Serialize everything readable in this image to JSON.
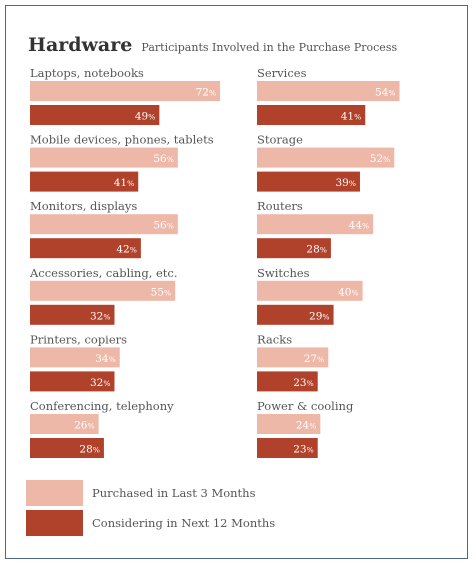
{
  "chart_data": {
    "type": "bar",
    "title": "Hardware",
    "subtitle": "Participants Involved in the Purchase Process",
    "unit": "%",
    "series": [
      {
        "name": "Purchased in Last 3 Months",
        "color": "#eeb8a8"
      },
      {
        "name": "Considering in Next 12 Months",
        "color": "#b0412a"
      }
    ],
    "panels": [
      {
        "categories": [
          {
            "label": "Laptops, notebooks",
            "values": [
              72,
              49
            ]
          },
          {
            "label": "Mobile devices, phones, tablets",
            "values": [
              56,
              41
            ]
          },
          {
            "label": "Monitors, displays",
            "values": [
              56,
              42
            ]
          },
          {
            "label": "Accessories, cabling, etc.",
            "values": [
              55,
              32
            ]
          },
          {
            "label": "Printers, copiers",
            "values": [
              34,
              32
            ]
          },
          {
            "label": "Conferencing, telephony",
            "values": [
              26,
              28
            ]
          }
        ]
      },
      {
        "categories": [
          {
            "label": "Services",
            "values": [
              54,
              41
            ]
          },
          {
            "label": "Storage",
            "values": [
              52,
              39
            ]
          },
          {
            "label": "Routers",
            "values": [
              44,
              28
            ]
          },
          {
            "label": "Switches",
            "values": [
              40,
              29
            ]
          },
          {
            "label": "Racks",
            "values": [
              27,
              23
            ]
          },
          {
            "label": "Power & cooling",
            "values": [
              24,
              23
            ]
          }
        ]
      }
    ]
  }
}
